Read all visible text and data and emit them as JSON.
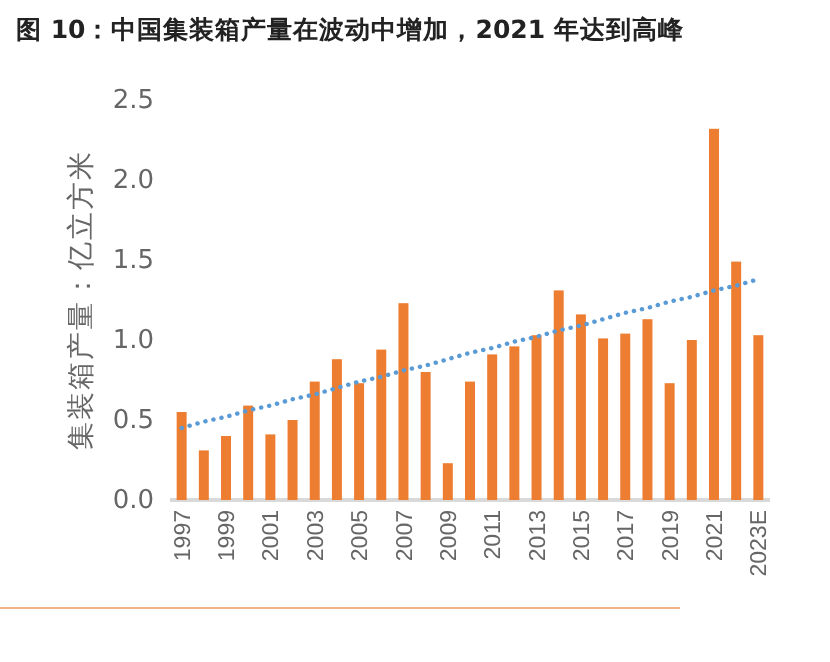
{
  "chart_data": {
    "type": "bar",
    "title": "图 10：中国集装箱产量在波动中增加，2021 年达到高峰",
    "ylabel": "集装箱产量：亿立方米",
    "categories": [
      "1997",
      null,
      "1999",
      null,
      "2001",
      null,
      "2003",
      null,
      "2005",
      null,
      "2007",
      null,
      "2009",
      null,
      "2011",
      null,
      "2013",
      null,
      "2015",
      null,
      "2017",
      null,
      "2019",
      null,
      "2021",
      null,
      "2023E"
    ],
    "series": [
      {
        "color": "#ed7d31",
        "values": [
          0.55,
          0.31,
          0.4,
          0.59,
          0.41,
          0.5,
          0.74,
          0.88,
          0.73,
          0.94,
          1.23,
          0.8,
          0.23,
          0.74,
          0.91,
          0.96,
          1.03,
          1.31,
          1.16,
          1.01,
          1.04,
          1.13,
          0.73,
          1.0,
          2.32,
          1.49,
          1.03
        ]
      },
      {
        "type": "line",
        "color": "#5b9bd5",
        "line_style": "dotted",
        "values": [
          0.45,
          0.49,
          0.52,
          0.56,
          0.59,
          0.63,
          0.66,
          0.7,
          0.74,
          0.77,
          0.81,
          0.84,
          0.88,
          0.92,
          0.95,
          0.99,
          1.02,
          1.06,
          1.09,
          1.13,
          1.17,
          1.2,
          1.24,
          1.27,
          1.31,
          1.34,
          1.38
        ]
      }
    ],
    "ylim": [
      0,
      2.5
    ],
    "yticks": [
      {
        "value": 0,
        "label": "0.0"
      },
      {
        "value": 0.5,
        "label": "0.5"
      },
      {
        "value": 1,
        "label": "1.0"
      },
      {
        "value": 1.5,
        "label": "1.5"
      },
      {
        "value": 2,
        "label": "2.0"
      },
      {
        "value": 2.5,
        "label": "2.5"
      }
    ],
    "grid": false
  }
}
